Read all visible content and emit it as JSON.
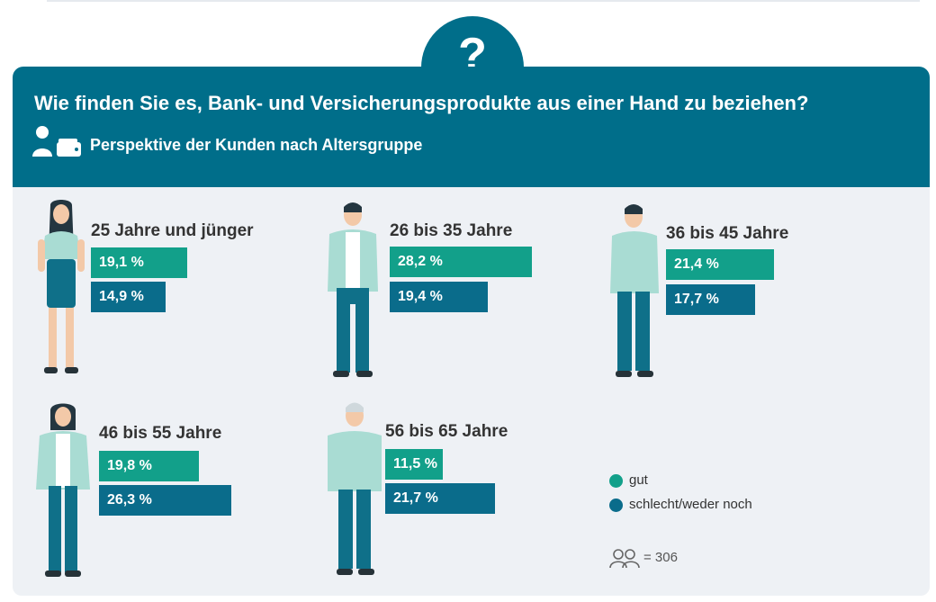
{
  "title": "Wie finden Sie es, Bank- und Versicherungsprodukte aus einer Hand zu beziehen?",
  "subtitle": "Perspektive der Kunden nach Altersgruppe",
  "question_mark": "?",
  "legend": {
    "gut": "gut",
    "schlecht": "schlecht/weder noch"
  },
  "sample": {
    "text": "= 306"
  },
  "colors": {
    "gut": "#12a08a",
    "schlecht": "#0a6c8b",
    "header": "#006e8a",
    "panel": "#eef1f5"
  },
  "chart_data": {
    "type": "bar",
    "orientation": "horizontal",
    "categories": [
      "25 Jahre und jünger",
      "26 bis 35 Jahre",
      "36 bis 45 Jahre",
      "46 bis 55 Jahre",
      "56 bis 65 Jahre"
    ],
    "series": [
      {
        "name": "gut",
        "values": [
          19.1,
          28.2,
          21.4,
          19.8,
          11.5
        ],
        "labels": [
          "19,1 %",
          "28,2 %",
          "21,4 %",
          "19,8 %",
          "11,5 %"
        ]
      },
      {
        "name": "schlecht/weder noch",
        "values": [
          14.9,
          19.4,
          17.7,
          26.3,
          21.7
        ],
        "labels": [
          "14,9 %",
          "19,4 %",
          "17,7 %",
          "26,3 %",
          "21,7 %"
        ]
      }
    ],
    "unit": "%",
    "n": 306
  }
}
